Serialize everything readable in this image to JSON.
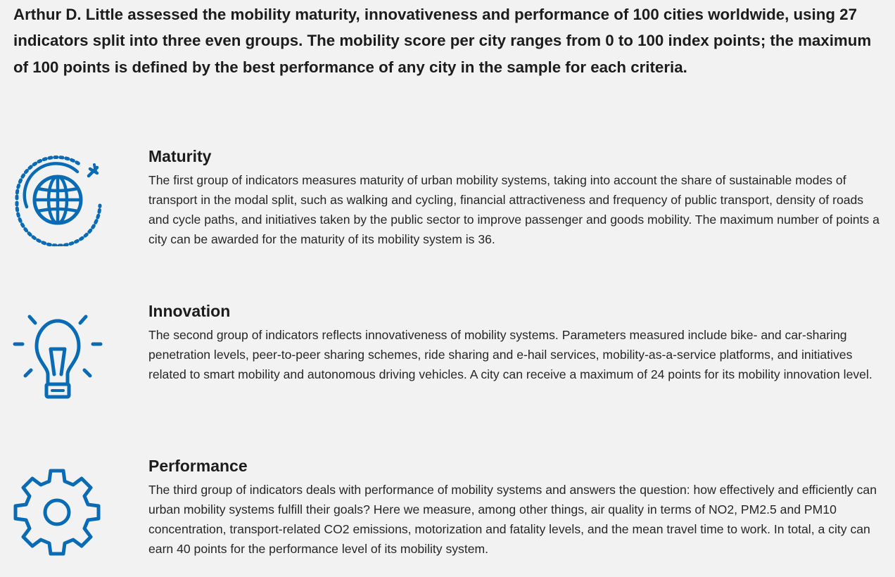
{
  "intro": "Arthur D. Little assessed the mobility maturity, innovativeness and performance of 100 cities worldwide, using 27 indicators split into three even groups. The mobility score per city ranges from 0 to 100 index points; the maximum of 100 points is defined by the best performance of any city in the sample for each criteria.",
  "accent_color": "#0a6bb5",
  "sections": [
    {
      "icon": "globe-plane-icon",
      "title": "Maturity",
      "text": "The first group of indicators measures maturity of urban mobility systems, taking into account the share of sustainable modes of transport in the modal split, such as walking and cycling, financial attractiveness and frequency of public transport, density of roads and cycle paths, and initiatives taken by the public sector to improve passenger and goods mobility. The maximum number of points a city can be awarded for the maturity of its mobility system is 36."
    },
    {
      "icon": "lightbulb-icon",
      "title": "Innovation",
      "text": "The second group of indicators reflects innovativeness of mobility systems. Parameters measured include bike- and car-sharing penetration levels, peer-to-peer sharing schemes, ride sharing and e-hail services, mobility-as-a-service platforms, and initiatives related to smart mobility and autonomous driving vehicles. A city can receive a maximum of 24 points for its mobility innovation level."
    },
    {
      "icon": "gear-icon",
      "title": "Performance",
      "text": "The third group of indicators deals with performance of mobility systems and answers the question: how effectively and efficiently can urban mobility systems fulfill their goals? Here we measure, among other things, air quality in terms of NO2, PM2.5 and PM10 concentration, transport-related CO2 emissions, motorization and fatality levels, and the mean travel time to work. In total, a city can earn 40 points for the performance level of its mobility system."
    }
  ]
}
